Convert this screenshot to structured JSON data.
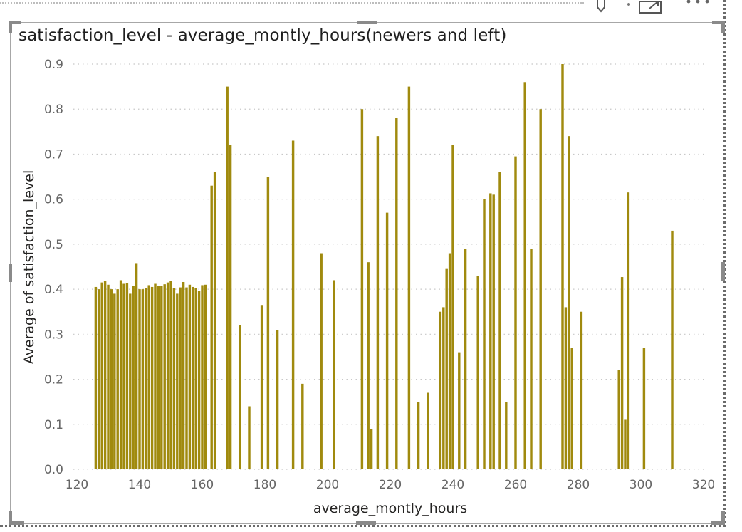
{
  "chart_data": {
    "type": "bar",
    "title": "satisfaction_level - average_montly_hours(newers and left)",
    "xlabel": "average_montly_hours",
    "ylabel": "Average of satisfaction_level",
    "xlim": [
      120,
      320
    ],
    "ylim": [
      0,
      0.9
    ],
    "x_ticks": [
      "120",
      "140",
      "160",
      "180",
      "200",
      "220",
      "240",
      "260",
      "280",
      "300",
      "320"
    ],
    "y_ticks": [
      "0.0",
      "0.1",
      "0.2",
      "0.3",
      "0.4",
      "0.5",
      "0.6",
      "0.7",
      "0.8",
      "0.9"
    ],
    "bar_color": "#A08A0E",
    "grid": "horizontal dotted",
    "points": [
      [
        126,
        0.405
      ],
      [
        127,
        0.4
      ],
      [
        128,
        0.415
      ],
      [
        129,
        0.418
      ],
      [
        130,
        0.41
      ],
      [
        131,
        0.4
      ],
      [
        132,
        0.39
      ],
      [
        133,
        0.4
      ],
      [
        134,
        0.42
      ],
      [
        135,
        0.412
      ],
      [
        136,
        0.413
      ],
      [
        137,
        0.39
      ],
      [
        138,
        0.408
      ],
      [
        139,
        0.458
      ],
      [
        140,
        0.4
      ],
      [
        141,
        0.4
      ],
      [
        142,
        0.403
      ],
      [
        143,
        0.409
      ],
      [
        144,
        0.405
      ],
      [
        145,
        0.412
      ],
      [
        146,
        0.407
      ],
      [
        147,
        0.408
      ],
      [
        148,
        0.411
      ],
      [
        149,
        0.415
      ],
      [
        150,
        0.419
      ],
      [
        151,
        0.403
      ],
      [
        152,
        0.39
      ],
      [
        153,
        0.404
      ],
      [
        154,
        0.416
      ],
      [
        155,
        0.404
      ],
      [
        156,
        0.41
      ],
      [
        157,
        0.405
      ],
      [
        158,
        0.403
      ],
      [
        159,
        0.397
      ],
      [
        160,
        0.409
      ],
      [
        161,
        0.41
      ],
      [
        163,
        0.63
      ],
      [
        164,
        0.66
      ],
      [
        168,
        0.85
      ],
      [
        169,
        0.72
      ],
      [
        172,
        0.32
      ],
      [
        175,
        0.14
      ],
      [
        179,
        0.365
      ],
      [
        181,
        0.65
      ],
      [
        184,
        0.31
      ],
      [
        189,
        0.73
      ],
      [
        192,
        0.19
      ],
      [
        198,
        0.48
      ],
      [
        202,
        0.42
      ],
      [
        211,
        0.8
      ],
      [
        213,
        0.46
      ],
      [
        214,
        0.09
      ],
      [
        216,
        0.74
      ],
      [
        219,
        0.57
      ],
      [
        222,
        0.78
      ],
      [
        226,
        0.85
      ],
      [
        229,
        0.15
      ],
      [
        232,
        0.17
      ],
      [
        236,
        0.35
      ],
      [
        237,
        0.36
      ],
      [
        238,
        0.445
      ],
      [
        239,
        0.48
      ],
      [
        240,
        0.72
      ],
      [
        242,
        0.26
      ],
      [
        244,
        0.49
      ],
      [
        248,
        0.43
      ],
      [
        250,
        0.6
      ],
      [
        252,
        0.613
      ],
      [
        253,
        0.61
      ],
      [
        255,
        0.66
      ],
      [
        257,
        0.15
      ],
      [
        260,
        0.695
      ],
      [
        263,
        0.86
      ],
      [
        265,
        0.49
      ],
      [
        268,
        0.8
      ],
      [
        275,
        0.9
      ],
      [
        276,
        0.36
      ],
      [
        277,
        0.74
      ],
      [
        278,
        0.27
      ],
      [
        281,
        0.35
      ],
      [
        293,
        0.22
      ],
      [
        294,
        0.427
      ],
      [
        295,
        0.11
      ],
      [
        296,
        0.615
      ],
      [
        301,
        0.27
      ],
      [
        310,
        0.53
      ]
    ]
  }
}
